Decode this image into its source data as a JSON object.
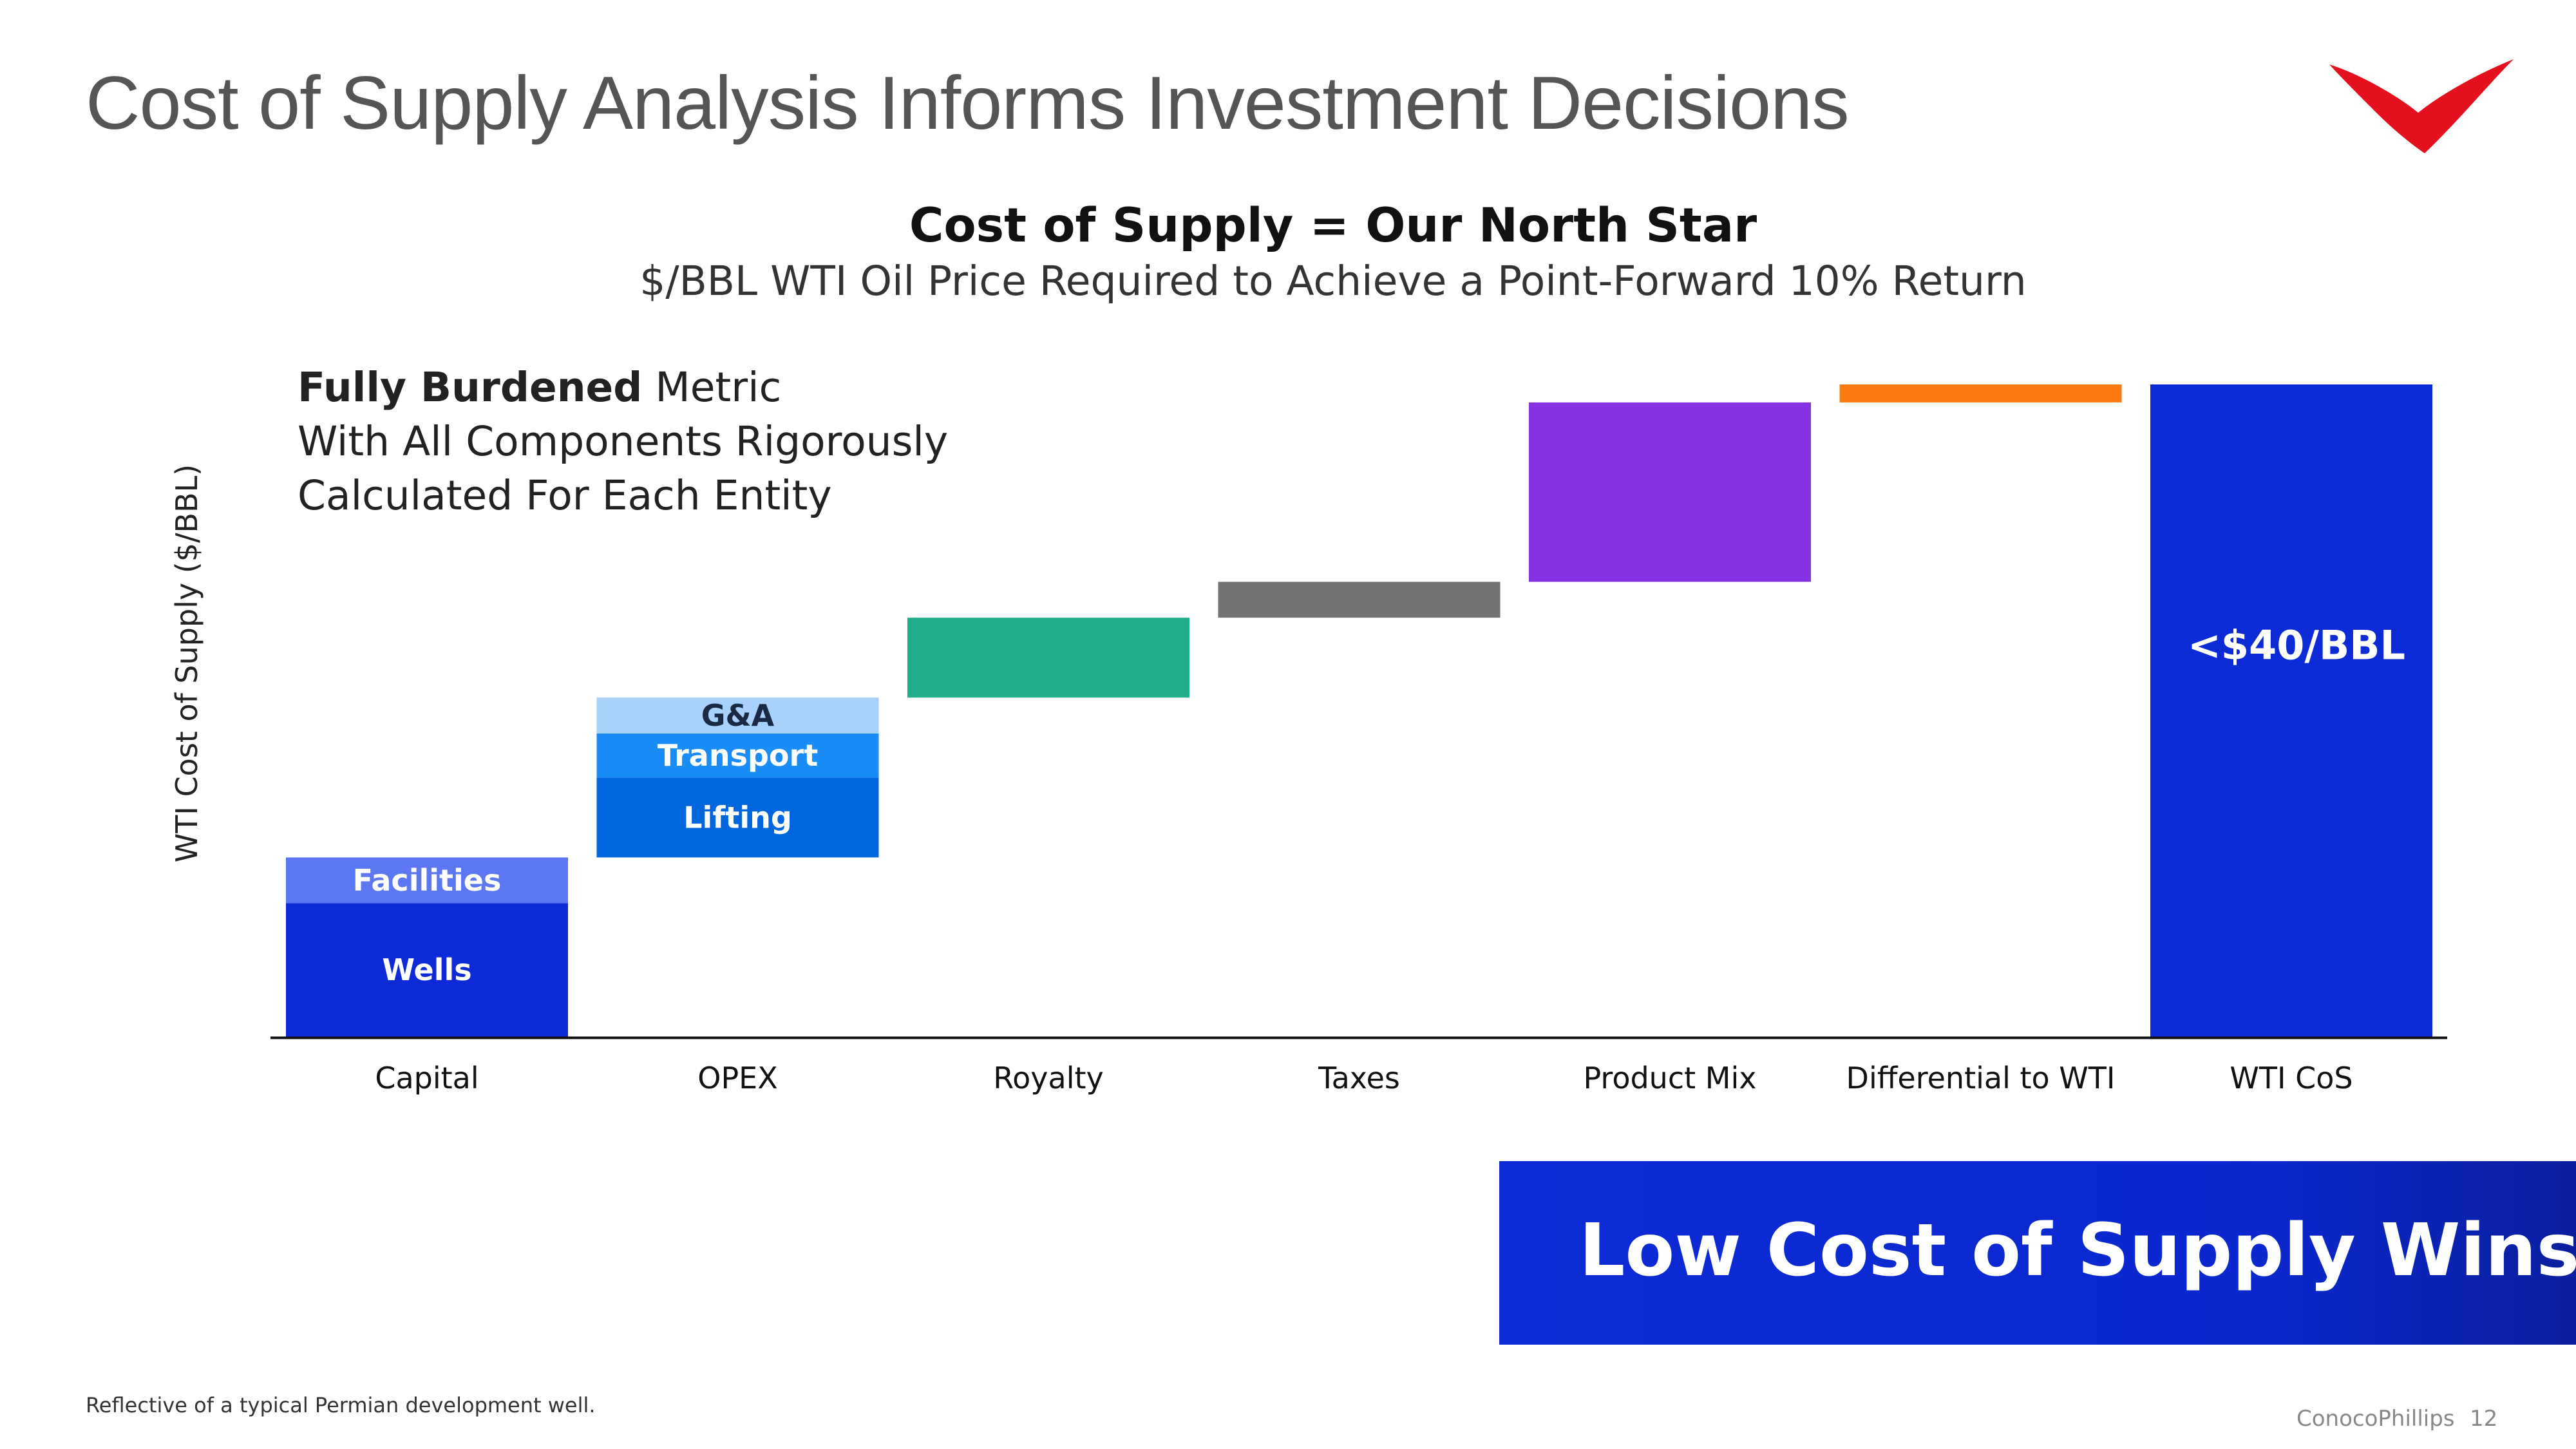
{
  "slide": {
    "title": "Cost of Supply Analysis Informs Investment Decisions",
    "footnote": "Reflective of a typical Permian development well.",
    "brand": "ConocoPhillips",
    "page_number": "12",
    "callout_bold": "Fully Burdened",
    "callout_rest": " Metric",
    "callout_line2": "With All Components Rigorously",
    "callout_line3": "Calculated For Each Entity",
    "banner": "Low Cost of Supply Wins",
    "logo_icon": "conocophillips-wing-logo",
    "colors": {
      "accent_blue": "#0c2bd6",
      "logo_red": "#e3101e"
    }
  },
  "chart_data": {
    "type": "bar",
    "subtype": "waterfall",
    "title": "Cost of Supply = Our North Star",
    "subtitle": "$/BBL WTI Oil Price Required to Achieve a Point-Forward 10% Return",
    "ylabel": "WTI Cost of Supply ($/BBL)",
    "xlabel": "",
    "ylim": [
      0,
      40
    ],
    "grid": false,
    "categories": [
      "Capital",
      "OPEX",
      "Royalty",
      "Taxes",
      "Product Mix",
      "Differential to WTI",
      "WTI CoS"
    ],
    "series": [
      {
        "name": "Wells",
        "category": "Capital",
        "start": 0,
        "end": 8.2,
        "color": "#0c2bd6",
        "label": "Wells"
      },
      {
        "name": "Facilities",
        "category": "Capital",
        "start": 8.2,
        "end": 11.0,
        "color": "#5b77f2",
        "label": "Facilities"
      },
      {
        "name": "Lifting",
        "category": "OPEX",
        "start": 11.0,
        "end": 15.9,
        "color": "#0066dd",
        "label": "Lifting"
      },
      {
        "name": "Transport",
        "category": "OPEX",
        "start": 15.9,
        "end": 18.6,
        "color": "#1a8cf7",
        "label": "Transport"
      },
      {
        "name": "G&A",
        "category": "OPEX",
        "start": 18.6,
        "end": 20.8,
        "color": "#a8d1fb",
        "label": "G&A"
      },
      {
        "category": "Royalty",
        "start": 20.8,
        "end": 25.7,
        "color": "#22ad8c"
      },
      {
        "category": "Taxes",
        "start": 25.7,
        "end": 27.9,
        "color": "#737373"
      },
      {
        "category": "Product Mix",
        "start": 27.9,
        "end": 38.9,
        "color": "#8532e3"
      },
      {
        "category": "Differential to WTI",
        "start": 38.9,
        "end": 40.0,
        "color": "#fb7a10"
      },
      {
        "category": "WTI CoS",
        "start": 0,
        "end": 40.0,
        "color": "#0c2bd6",
        "label": "<$40/BBL"
      }
    ]
  }
}
